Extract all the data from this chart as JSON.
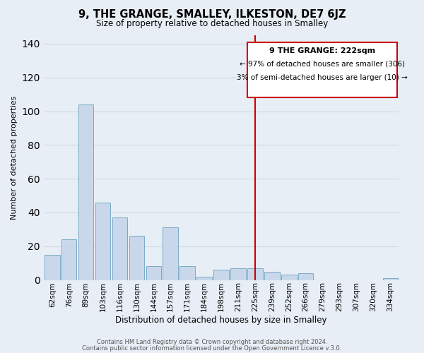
{
  "title": "9, THE GRANGE, SMALLEY, ILKESTON, DE7 6JZ",
  "subtitle": "Size of property relative to detached houses in Smalley",
  "xlabel": "Distribution of detached houses by size in Smalley",
  "ylabel": "Number of detached properties",
  "bar_labels": [
    "62sqm",
    "76sqm",
    "89sqm",
    "103sqm",
    "116sqm",
    "130sqm",
    "144sqm",
    "157sqm",
    "171sqm",
    "184sqm",
    "198sqm",
    "211sqm",
    "225sqm",
    "239sqm",
    "252sqm",
    "266sqm",
    "279sqm",
    "293sqm",
    "307sqm",
    "320sqm",
    "334sqm"
  ],
  "bar_values": [
    15,
    24,
    104,
    46,
    37,
    26,
    8,
    31,
    8,
    2,
    6,
    7,
    7,
    5,
    3,
    4,
    0,
    0,
    0,
    0,
    1
  ],
  "bar_color": "#c8d8ea",
  "bar_edge_color": "#7aaac8",
  "ylim": [
    0,
    145
  ],
  "yticks": [
    0,
    20,
    40,
    60,
    80,
    100,
    120,
    140
  ],
  "vline_x_index": 12,
  "vline_color": "#cc0000",
  "box_title": "9 THE GRANGE: 222sqm",
  "box_line1": "← 97% of detached houses are smaller (306)",
  "box_line2": "3% of semi-detached houses are larger (10) →",
  "box_facecolor": "#ffffff",
  "box_edgecolor": "#cc0000",
  "background_color": "#e8eef5",
  "grid_color": "#d0d8e0",
  "footnote1": "Contains HM Land Registry data © Crown copyright and database right 2024.",
  "footnote2": "Contains public sector information licensed under the Open Government Licence v.3.0."
}
